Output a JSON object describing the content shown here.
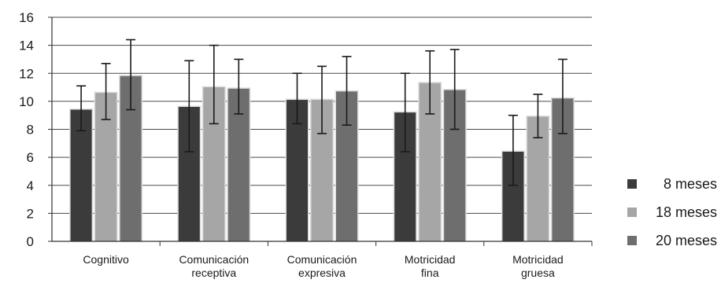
{
  "chart_data": {
    "type": "bar",
    "title": "",
    "xlabel": "",
    "ylabel": "",
    "ylim": [
      0,
      16
    ],
    "yticks": [
      0,
      2,
      4,
      6,
      8,
      10,
      12,
      14,
      16
    ],
    "grid": true,
    "legend_position": "right",
    "categories": [
      [
        "Cognitivo"
      ],
      [
        "Comunicación",
        "receptiva"
      ],
      [
        "Comunicación",
        "expresiva"
      ],
      [
        "Motricidad",
        "fina"
      ],
      [
        "Motricidad",
        "gruesa"
      ]
    ],
    "series": [
      {
        "name": "8 meses",
        "color": "#3b3b3b",
        "values": [
          9.4,
          9.6,
          10.1,
          9.2,
          6.4
        ],
        "error_low": [
          7.9,
          6.4,
          8.4,
          6.4,
          4.0
        ],
        "error_high": [
          11.1,
          12.9,
          12.0,
          12.0,
          9.0
        ]
      },
      {
        "name": "18 meses",
        "color": "#a6a6a6",
        "values": [
          10.6,
          11.0,
          10.1,
          11.3,
          8.9
        ],
        "error_low": [
          8.7,
          8.4,
          7.7,
          9.1,
          7.4
        ],
        "error_high": [
          12.7,
          14.0,
          12.5,
          13.6,
          10.5
        ]
      },
      {
        "name": "20 meses",
        "color": "#6e6e6e",
        "values": [
          11.8,
          10.9,
          10.7,
          10.8,
          10.2
        ],
        "error_low": [
          9.4,
          9.1,
          8.3,
          8.0,
          7.7
        ],
        "error_high": [
          14.4,
          13.0,
          13.2,
          13.7,
          13.0
        ]
      }
    ]
  }
}
